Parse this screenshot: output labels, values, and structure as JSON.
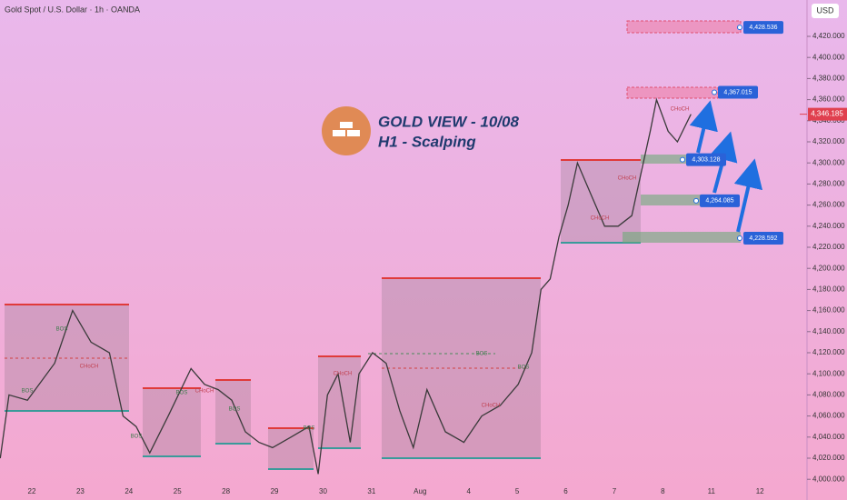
{
  "chart_data": {
    "type": "line",
    "header": "Gold Spot / U.S. Dollar · 1h · OANDA",
    "currency": "USD",
    "title": "GOLD VIEW - 10/08",
    "subtitle": "H1 - Scalping",
    "categories": [
      "22",
      "23",
      "24",
      "25",
      "28",
      "29",
      "30",
      "31",
      "Aug",
      "4",
      "5",
      "6",
      "7",
      "8",
      "11",
      "12"
    ],
    "xlim": [
      -0.655,
      15.97
    ],
    "ylim": [
      3995,
      4445
    ],
    "yticks": [
      {
        "value": 4000,
        "label": "4,000.000"
      },
      {
        "value": 4020,
        "label": "4,020.000"
      },
      {
        "value": 4040,
        "label": "4,040.000"
      },
      {
        "value": 4060,
        "label": "4,060.000"
      },
      {
        "value": 4080,
        "label": "4,080.000"
      },
      {
        "value": 4100,
        "label": "4,100.000"
      },
      {
        "value": 4120,
        "label": "4,120.000"
      },
      {
        "value": 4140,
        "label": "4,140.000"
      },
      {
        "value": 4160,
        "label": "4,160.000"
      },
      {
        "value": 4180,
        "label": "4,180.000"
      },
      {
        "value": 4200,
        "label": "4,200.000"
      },
      {
        "value": 4220,
        "label": "4,220.000"
      },
      {
        "value": 4240,
        "label": "4,240.000"
      },
      {
        "value": 4260,
        "label": "4,260.000"
      },
      {
        "value": 4280,
        "label": "4,280.000"
      },
      {
        "value": 4300,
        "label": "4,300.000"
      },
      {
        "value": 4320,
        "label": "4,320.000"
      },
      {
        "value": 4340,
        "label": "4,340.000"
      },
      {
        "value": 4360,
        "label": "4,360.000"
      },
      {
        "value": 4380,
        "label": "4,380.000"
      },
      {
        "value": 4400,
        "label": "4,400.000"
      },
      {
        "value": 4420,
        "label": "4,420.000"
      }
    ],
    "series": [
      {
        "name": "XAUUSD",
        "color": "#3a3a3a",
        "x": [
          -0.65,
          -0.47,
          -0.09,
          0.47,
          0.84,
          1.22,
          1.6,
          1.88,
          2.15,
          2.43,
          2.81,
          3.28,
          3.56,
          3.84,
          4.12,
          4.4,
          4.68,
          4.96,
          5.34,
          5.71,
          5.9,
          6.09,
          6.31,
          6.56,
          6.74,
          7.02,
          7.3,
          7.58,
          7.86,
          8.14,
          8.52,
          8.9,
          9.27,
          9.65,
          10.02,
          10.3,
          10.49,
          10.68,
          10.86,
          11.05,
          11.24,
          11.52,
          11.8,
          12.08,
          12.36,
          12.55,
          12.74,
          12.87,
          13.11,
          13.3,
          13.58
        ],
        "values": [
          4020,
          4080,
          4075,
          4110,
          4160,
          4130,
          4120,
          4060,
          4050,
          4025,
          4060,
          4105,
          4090,
          4085,
          4075,
          4045,
          4035,
          4030,
          4040,
          4050,
          4005,
          4080,
          4100,
          4035,
          4100,
          4120,
          4110,
          4065,
          4030,
          4085,
          4045,
          4035,
          4060,
          4070,
          4090,
          4120,
          4180,
          4190,
          4230,
          4260,
          4300,
          4270,
          4240,
          4240,
          4250,
          4290,
          4330,
          4360,
          4330,
          4320,
          4346.185
        ]
      }
    ],
    "current_price": {
      "value": 4346.185,
      "label": "4,346.185"
    },
    "levels": [
      {
        "value": 4428.536,
        "label": "4,428.536"
      },
      {
        "value": 4367.015,
        "label": "4,367.015"
      },
      {
        "value": 4303.128,
        "label": "4,303.128"
      },
      {
        "value": 4264.085,
        "label": "4,264.085"
      },
      {
        "value": 4228.592,
        "label": "4,228.592"
      }
    ],
    "annotations": [
      "BOS",
      "BOS",
      "BOS",
      "BOS",
      "BOS",
      "BOS",
      "BOS",
      "BOS",
      "CHoCH",
      "CHoCH",
      "CHoCH",
      "CHoCH",
      "CHoCH",
      "CHoCH",
      "CHoCH"
    ]
  }
}
